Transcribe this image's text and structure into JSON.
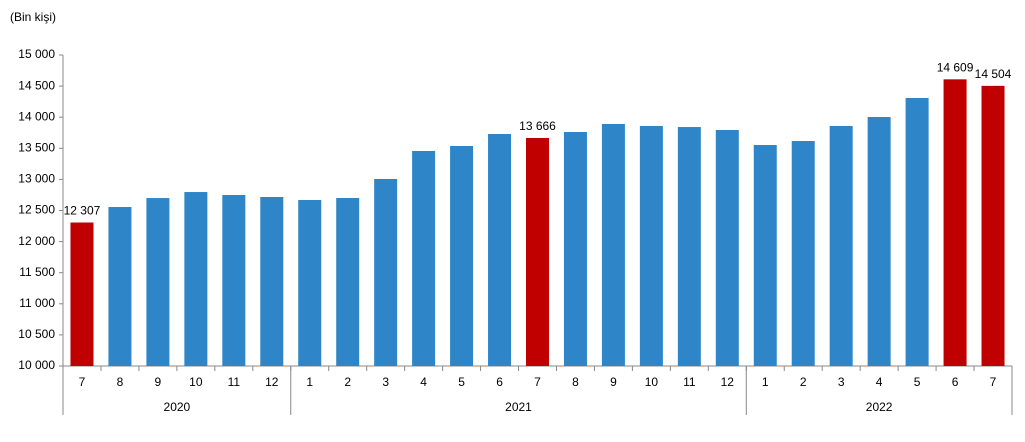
{
  "chart_data": {
    "type": "bar",
    "y_label": "(Bin kişi)",
    "categories": [
      "7",
      "8",
      "9",
      "10",
      "11",
      "12",
      "1",
      "2",
      "3",
      "4",
      "5",
      "6",
      "7",
      "8",
      "9",
      "10",
      "11",
      "12",
      "1",
      "2",
      "3",
      "4",
      "5",
      "6",
      "7"
    ],
    "groups": [
      {
        "label": "2020",
        "size": 6
      },
      {
        "label": "2021",
        "size": 12
      },
      {
        "label": "2022",
        "size": 7
      }
    ],
    "values": [
      12307,
      12556,
      12700,
      12797,
      12749,
      12717,
      12669,
      12701,
      13007,
      13457,
      13537,
      13730,
      13666,
      13762,
      13891,
      13859,
      13842,
      13794,
      13553,
      13617,
      13859,
      14003,
      14309,
      14609,
      14504
    ],
    "value_labels": [
      "12 307",
      null,
      null,
      null,
      null,
      null,
      null,
      null,
      null,
      null,
      null,
      null,
      "13 666",
      null,
      null,
      null,
      null,
      null,
      null,
      null,
      null,
      null,
      null,
      "14 609",
      "14 504"
    ],
    "colors": [
      "#c00000",
      "#2e86c8",
      "#2e86c8",
      "#2e86c8",
      "#2e86c8",
      "#2e86c8",
      "#2e86c8",
      "#2e86c8",
      "#2e86c8",
      "#2e86c8",
      "#2e86c8",
      "#2e86c8",
      "#c00000",
      "#2e86c8",
      "#2e86c8",
      "#2e86c8",
      "#2e86c8",
      "#2e86c8",
      "#2e86c8",
      "#2e86c8",
      "#2e86c8",
      "#2e86c8",
      "#2e86c8",
      "#c00000",
      "#c00000"
    ],
    "ylim": [
      10000,
      15000
    ],
    "yticks": [
      {
        "value": 10000,
        "label": "10 000"
      },
      {
        "value": 10500,
        "label": "10 500"
      },
      {
        "value": 11000,
        "label": "11 000"
      },
      {
        "value": 11500,
        "label": "11 500"
      },
      {
        "value": 12000,
        "label": "12 000"
      },
      {
        "value": 12500,
        "label": "12 500"
      },
      {
        "value": 13000,
        "label": "13 000"
      },
      {
        "value": 13500,
        "label": "13 500"
      },
      {
        "value": 14000,
        "label": "14 000"
      },
      {
        "value": 14500,
        "label": "14 500"
      },
      {
        "value": 15000,
        "label": "15 000"
      }
    ],
    "grid": false
  }
}
